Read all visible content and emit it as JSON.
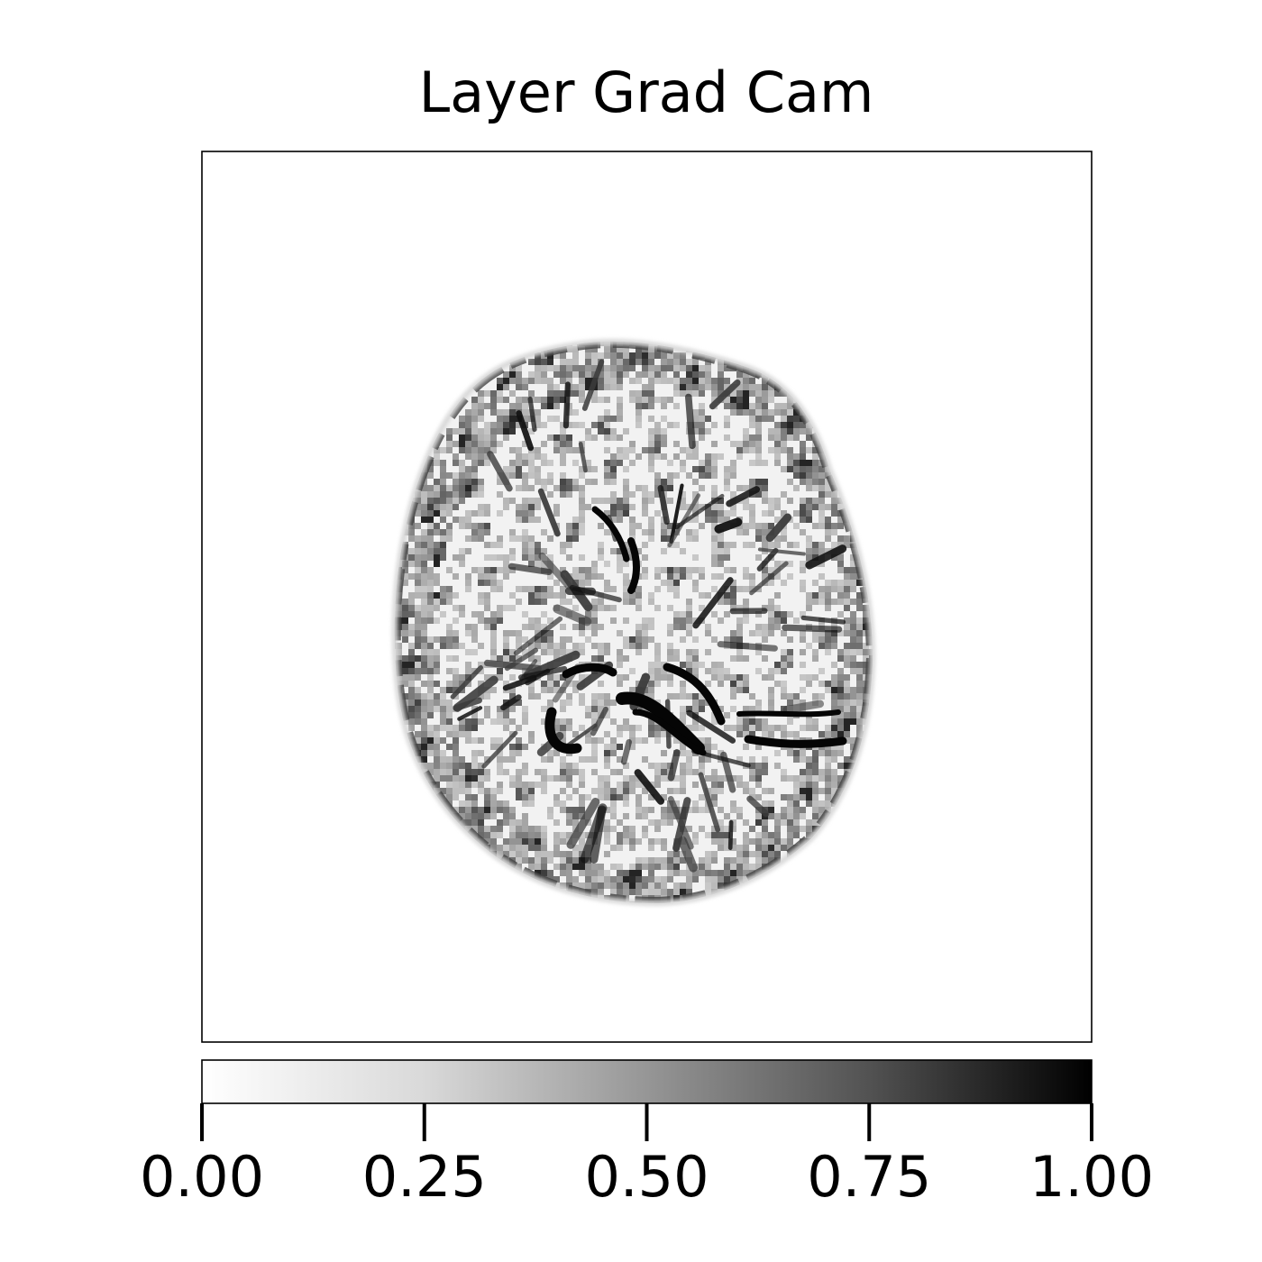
{
  "chart_data": {
    "type": "heatmap",
    "title": "Layer Grad Cam",
    "xlabel": "",
    "ylabel": "",
    "x_ticks": [],
    "y_ticks": [],
    "colormap": "Greys",
    "colors": {
      "low": "#ffffff",
      "high": "#000000"
    },
    "colorbar": {
      "orientation": "horizontal",
      "placement": "bottom",
      "range": [
        0.0,
        1.0
      ],
      "ticks": [
        {
          "value": 0.0,
          "label": "0.00"
        },
        {
          "value": 0.25,
          "label": "0.25"
        },
        {
          "value": 0.5,
          "label": "0.50"
        },
        {
          "value": 0.75,
          "label": "0.75"
        },
        {
          "value": 1.0,
          "label": "1.00"
        }
      ]
    },
    "grid": false,
    "content": "grayscale attribution map of an axial brain MRI slice, values in [0, 1], dense high-attribution detail along sulci, ventricle edges and outer cortex, zero background"
  }
}
